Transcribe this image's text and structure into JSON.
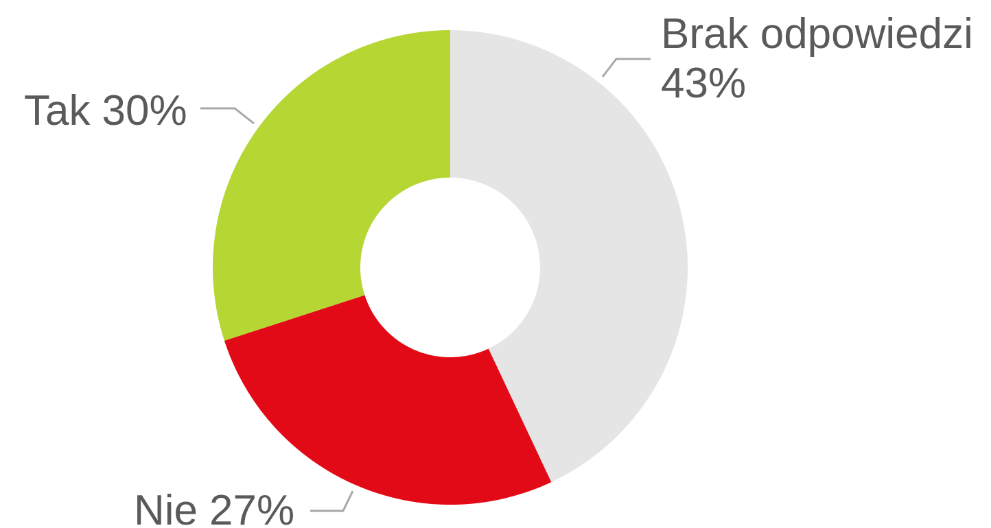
{
  "chart_data": {
    "type": "donut",
    "categories": [
      "Brak odpowiedzi",
      "Nie",
      "Tak"
    ],
    "values": [
      43,
      27,
      30
    ],
    "value_labels": [
      "43%",
      "27%",
      "30%"
    ],
    "colors": [
      "#e4e5e4",
      "#e30a17",
      "#b5d633"
    ]
  }
}
